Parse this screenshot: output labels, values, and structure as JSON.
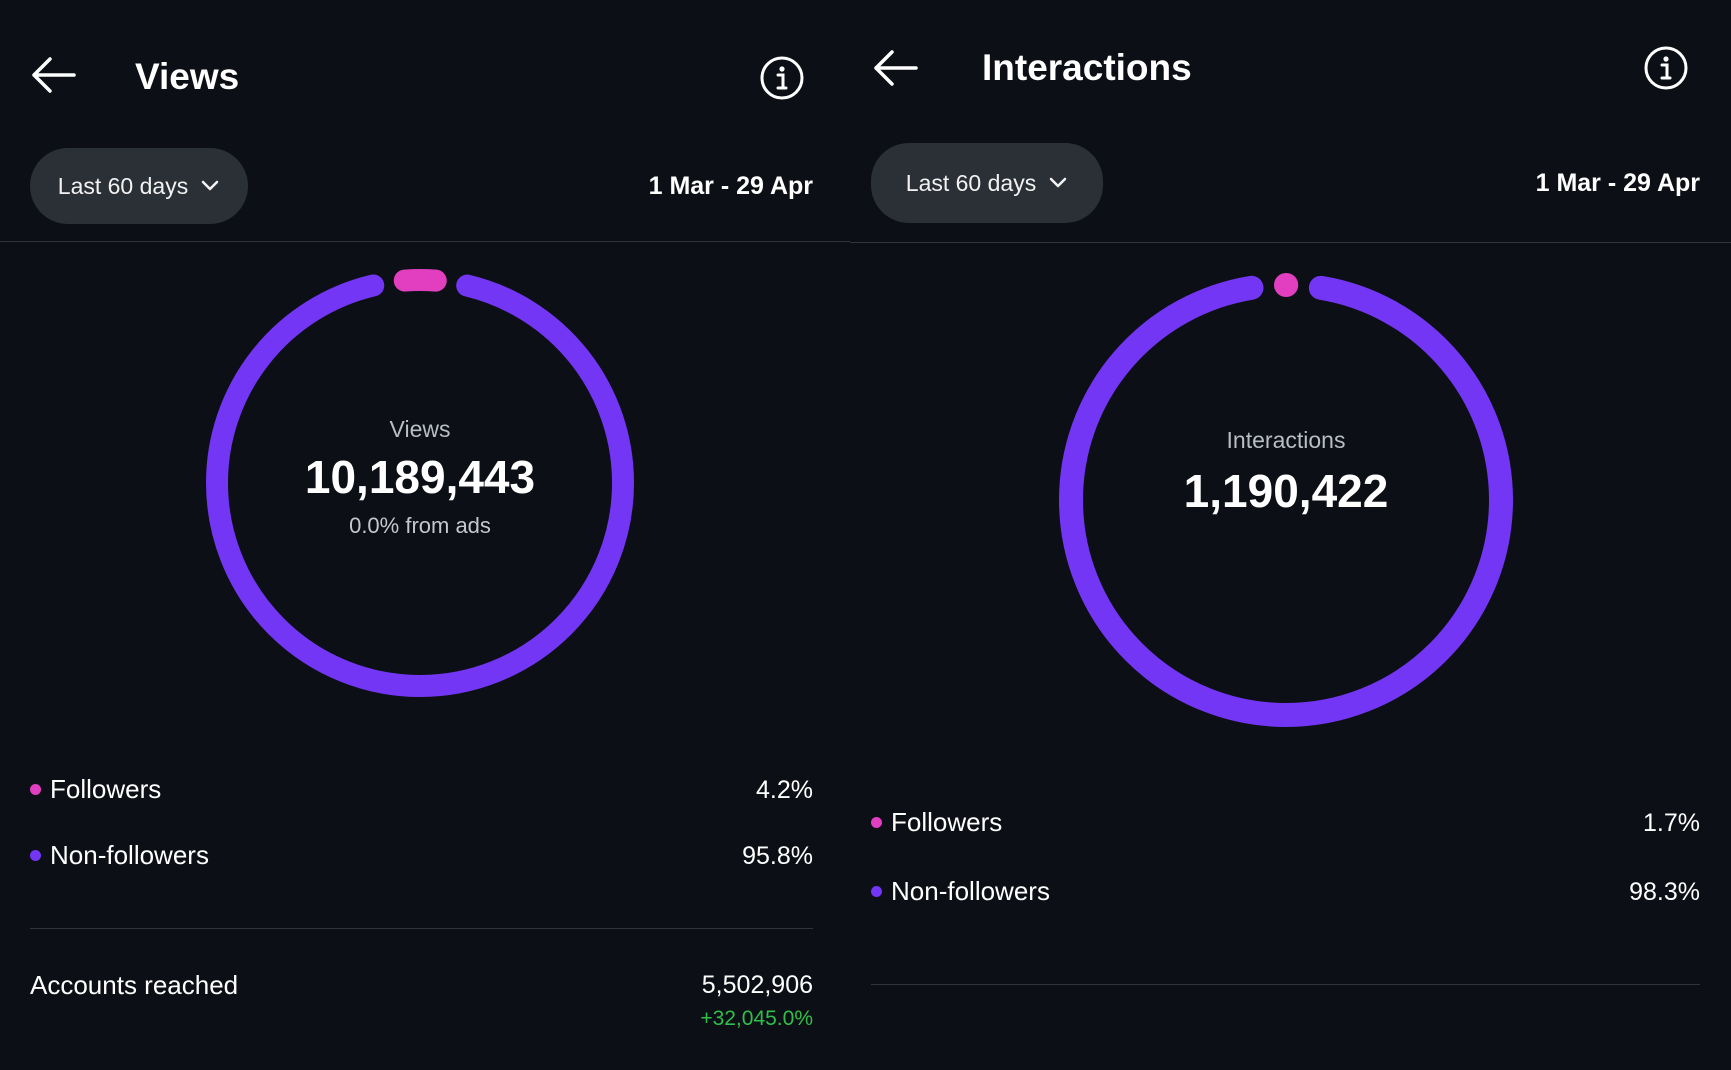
{
  "colors": {
    "followers": "#e23fc0",
    "non_followers": "#7336f5",
    "positive": "#2fbf4a",
    "background": "#0c0f15",
    "pill": "#2b3037"
  },
  "icons": {
    "back": "arrow-left-icon",
    "info": "info-circle-icon",
    "dropdown": "chevron-down-icon"
  },
  "views": {
    "title": "Views",
    "filter_label": "Last 60 days",
    "date_range": "1 Mar - 29 Apr",
    "ring": {
      "label": "Views",
      "value": "10,189,443",
      "sub": "0.0% from ads",
      "followers_share": 0.042,
      "non_followers_share": 0.958
    },
    "legend": [
      {
        "label": "Followers",
        "value": "4.2%"
      },
      {
        "label": "Non-followers",
        "value": "95.8%"
      }
    ],
    "accounts_reached": {
      "label": "Accounts reached",
      "value": "5,502,906",
      "change": "+32,045.0%"
    }
  },
  "interactions": {
    "title": "Interactions",
    "filter_label": "Last 60 days",
    "date_range": "1 Mar - 29 Apr",
    "ring": {
      "label": "Interactions",
      "value": "1,190,422",
      "followers_share": 0.017,
      "non_followers_share": 0.983
    },
    "legend": [
      {
        "label": "Followers",
        "value": "1.7%"
      },
      {
        "label": "Non-followers",
        "value": "98.3%"
      }
    ]
  }
}
